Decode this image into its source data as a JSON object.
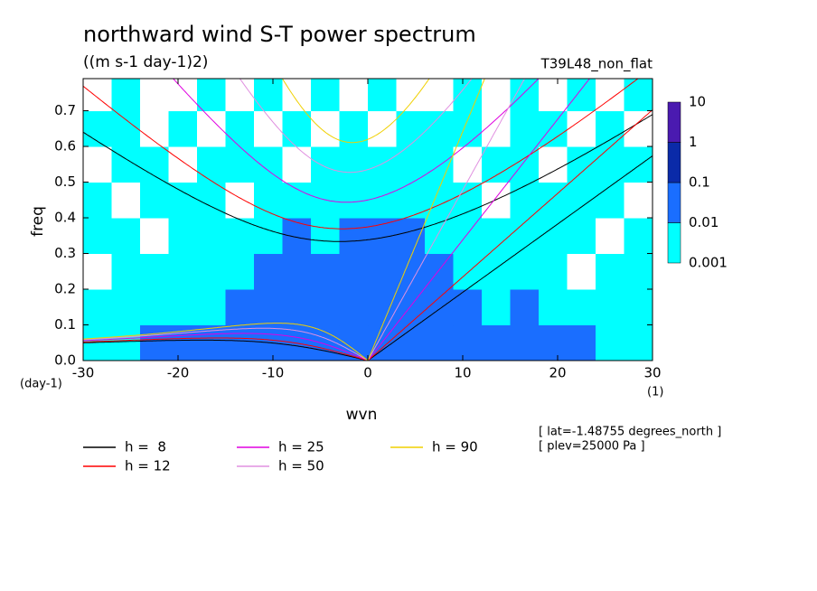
{
  "chart_data": {
    "type": "wavefreq",
    "title": "northward wind S-T power spectrum",
    "subtitle": "((m s-1 day-1)2)",
    "run_label": "T39L48_non_flat",
    "xlabel": "wvn",
    "ylabel": "freq",
    "y_unit": "(day-1)",
    "x_unit": "(1)",
    "xlim": [
      -30,
      30
    ],
    "xticks": [
      -30,
      -20,
      -10,
      0,
      10,
      20,
      30
    ],
    "ylim": [
      0,
      0.79
    ],
    "yticks": [
      {
        "value": 0,
        "label": "0.0"
      },
      0.1,
      0.2,
      0.3,
      0.4,
      0.5,
      0.6,
      0.7
    ],
    "colorbar": {
      "levels": [
        0.001,
        0.01,
        0.1,
        1,
        10
      ],
      "colors": [
        "#00ffff",
        "#1a6eff",
        "#0a2aa8",
        "#4a1ab0"
      ]
    },
    "field": {
      "x_edges": [
        -30,
        -27,
        -24,
        -21,
        -18,
        -15,
        -12,
        -9,
        -6,
        -3,
        0,
        3,
        6,
        9,
        12,
        15,
        18,
        21,
        24,
        27,
        30
      ],
      "y_edges": [
        0,
        0.1,
        0.2,
        0.3,
        0.4,
        0.5,
        0.6,
        0.7,
        0.8
      ],
      "values": [
        [
          0.005,
          0.005,
          0.05,
          0.05,
          0.05,
          0.05,
          0.05,
          0.05,
          0.05,
          0.05,
          0.05,
          0.05,
          0.05,
          0.05,
          0.05,
          0.05,
          0.05,
          0.05,
          0.005,
          0.005
        ],
        [
          0.005,
          0.005,
          0.005,
          0.005,
          0.005,
          0.05,
          0.05,
          0.05,
          0.05,
          0.05,
          0.05,
          0.05,
          0.05,
          0.05,
          0.005,
          0.05,
          0.005,
          0.005,
          0.005,
          0.005
        ],
        [
          0.0005,
          0.005,
          0.005,
          0.005,
          0.005,
          0.005,
          0.05,
          0.05,
          0.05,
          0.05,
          0.05,
          0.05,
          0.05,
          0.005,
          0.005,
          0.005,
          0.005,
          0.0005,
          0.005,
          0.005
        ],
        [
          0.005,
          0.005,
          0.0005,
          0.005,
          0.005,
          0.005,
          0.005,
          0.05,
          0.005,
          0.05,
          0.05,
          0.05,
          0.005,
          0.005,
          0.005,
          0.005,
          0.005,
          0.005,
          0.0005,
          0.005
        ],
        [
          0.005,
          0.0005,
          0.005,
          0.005,
          0.005,
          0.0005,
          0.005,
          0.005,
          0.005,
          0.005,
          0.005,
          0.005,
          0.005,
          0.005,
          0.0005,
          0.005,
          0.005,
          0.005,
          0.005,
          0.0005
        ],
        [
          0.0005,
          0.005,
          0.005,
          0.0005,
          0.005,
          0.005,
          0.005,
          0.0005,
          0.005,
          0.005,
          0.005,
          0.005,
          0.005,
          0.0005,
          0.005,
          0.005,
          0.0005,
          0.005,
          0.005,
          0.005
        ],
        [
          0.005,
          0.005,
          0.0005,
          0.005,
          0.0005,
          0.005,
          0.0005,
          0.005,
          0.0005,
          0.005,
          0.0005,
          0.005,
          0.005,
          0.005,
          0.0005,
          0.005,
          0.005,
          0.0005,
          0.005,
          0.0005
        ],
        [
          0.0005,
          0.005,
          0.0005,
          0.0005,
          0.005,
          0.0005,
          0.005,
          0.0005,
          0.005,
          0.0005,
          0.005,
          0.0005,
          0.0005,
          0.005,
          0.0005,
          0.005,
          0.0005,
          0.005,
          0.0005,
          0.005
        ]
      ]
    },
    "series": [
      {
        "name": "h =  8",
        "h": 8,
        "color": "#000000"
      },
      {
        "name": "h = 12",
        "h": 12,
        "color": "#ff0000"
      },
      {
        "name": "h = 25",
        "h": 25,
        "color": "#e000e0"
      },
      {
        "name": "h = 50",
        "h": 50,
        "color": "#e090e0"
      },
      {
        "name": "h = 90",
        "h": 90,
        "color": "#f0d000"
      }
    ],
    "annotations": [
      "[ lat=-1.48755 degrees_north ]",
      "[ plev=25000 Pa ]"
    ]
  }
}
